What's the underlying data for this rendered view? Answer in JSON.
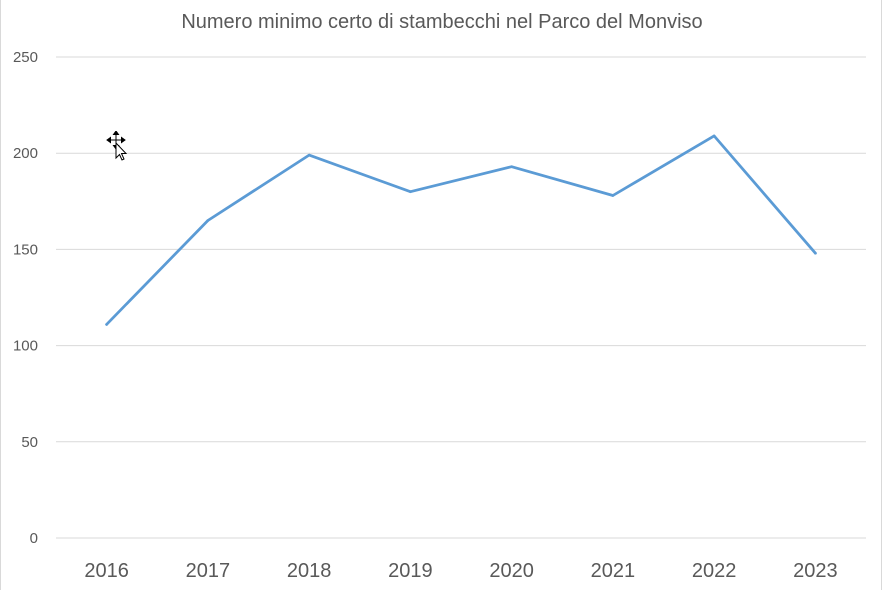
{
  "chart_data": {
    "type": "line",
    "title": "Numero minimo certo di stambecchi nel Parco del Monviso",
    "xlabel": "",
    "ylabel": "",
    "categories": [
      "2016",
      "2017",
      "2018",
      "2019",
      "2020",
      "2021",
      "2022",
      "2023"
    ],
    "series": [
      {
        "values": [
          111,
          165,
          199,
          180,
          193,
          178,
          209,
          148
        ],
        "color": "#5b9bd5"
      }
    ],
    "ylim": [
      0,
      250
    ],
    "yticks": [
      "0",
      "50",
      "100",
      "150",
      "200",
      "250"
    ],
    "grid": true,
    "legend": "none"
  },
  "cursor": {
    "icon": "move-cursor-icon"
  }
}
